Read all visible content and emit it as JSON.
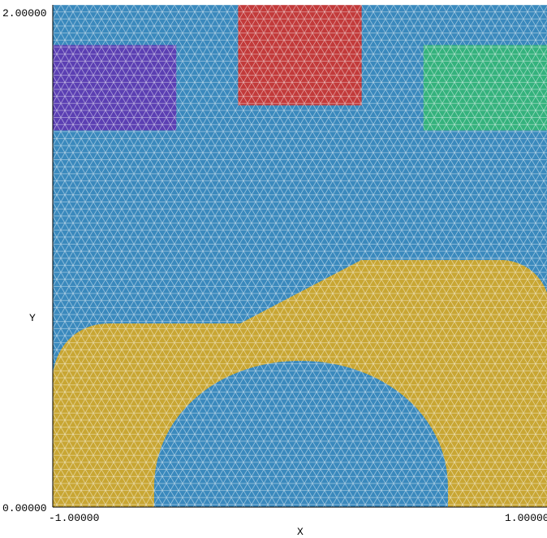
{
  "plot": {
    "y_axis": {
      "title": "Y",
      "min": 0.0,
      "max": 2.0,
      "min_label": "0.00000",
      "max_label": "2.00000"
    },
    "x_axis": {
      "title": "X",
      "min": -1.0,
      "max": 1.0,
      "min_label": "-1.00000",
      "max_label": "1.00000"
    }
  },
  "colors": {
    "background_region": "#3a89bd",
    "lower_electrode": "#c8a633",
    "purple_block": "#5b3fb3",
    "red_block": "#c23a3a",
    "green_block": "#34b27d",
    "mesh_lines": "#ffffff"
  },
  "regions": [
    {
      "name": "purple-block",
      "x": [
        -1.0,
        -0.5
      ],
      "y": [
        1.5,
        1.84
      ]
    },
    {
      "name": "red-block",
      "x": [
        -0.25,
        0.25
      ],
      "y": [
        1.6,
        2.0
      ]
    },
    {
      "name": "green-block",
      "x": [
        0.5,
        1.0
      ],
      "y": [
        1.5,
        1.84
      ]
    }
  ]
}
